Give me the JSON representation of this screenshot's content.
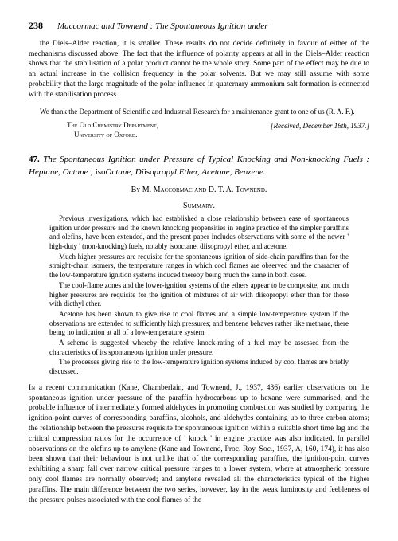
{
  "header": {
    "page_number": "238",
    "running_title": "Maccormac and Townend : The Spontaneous Ignition under"
  },
  "prev_section": {
    "para1": "the Diels–Alder reaction, it is smaller. These results do not decide definitely in favour of either of the mechanisms discussed above. The fact that the influence of polarity appears at all in the Diels–Alder reaction shows that the stabilisation of a polar product cannot be the whole story. Some part of the effect may be due to an actual increase in the collision frequency in the polar solvents. But we may still assume with some probability that the large magnitude of the polar influence in quaternary ammonium salt formation is connected with the stabilisation process.",
    "ack": "We thank the Department of Scientific and Industrial Research for a maintenance grant to one of us (R. A. F.).",
    "affil_line1": "The Old Chemistry Department,",
    "affil_line2": "University of Oxford.",
    "received": "[Received, December 16th, 1937.]"
  },
  "article": {
    "number": "47.",
    "title_html": "The Spontaneous Ignition under Pressure of Typical Knocking and Non-knocking Fuels : Heptane, Octane ; isoOctane, Diisopropyl Ether, Acetone, Benzene.",
    "authors": "By M. Maccormac and D. T. A. Townend.",
    "summary_head": "Summary.",
    "summary": {
      "p1": "Previous investigations, which had established a close relationship between ease of spontaneous ignition under pressure and the known knocking propensities in engine practice of the simpler paraffins and olefins, have been extended, and the present paper includes observations with some of the newer ' high-duty ' (non-knocking) fuels, notably isooctane, diisopropyl ether, and acetone.",
      "p2": "Much higher pressures are requisite for the spontaneous ignition of side-chain paraffins than for the straight-chain isomers, the temperature ranges in which cool flames are observed and the character of the low-temperature ignition systems induced thereby being much the same in both cases.",
      "p3": "The cool-flame zones and the lower-ignition systems of the ethers appear to be composite, and much higher pressures are requisite for the ignition of mixtures of air with diisopropyl ether than for those with diethyl ether.",
      "p4": "Acetone has been shown to give rise to cool flames and a simple low-temperature system if the observations are extended to sufficiently high pressures; and benzene behaves rather like methane, there being no indication at all of a low-temperature system.",
      "p5": "A scheme is suggested whereby the relative knock-rating of a fuel may be assessed from the characteristics of its spontaneous ignition under pressure.",
      "p6": "The processes giving rise to the low-temperature ignition systems induced by cool flames are briefly discussed."
    },
    "body_p1": "In a recent communication (Kane, Chamberlain, and Townend, J., 1937, 436) earlier observations on the spontaneous ignition under pressure of the paraffin hydrocarbons up to hexane were summarised, and the probable influence of intermediately formed aldehydes in promoting combustion was studied by comparing the ignition-point curves of corresponding paraffins, alcohols, and aldehydes containing up to three carbon atoms; the relationship between the pressures requisite for spontaneous ignition within a suitable short time lag and the critical compression ratios for the occurrence of ' knock ' in engine practice was also indicated. In parallel observations on the olefins up to amylene (Kane and Townend, Proc. Roy. Soc., 1937, A, 160, 174), it has also been shown that their behaviour is not unlike that of the corresponding paraffins, the ignition-point curves exhibiting a sharp fall over narrow critical pressure ranges to a lower system, where at atmospheric pressure only cool flames are normally observed; and amylene revealed all the characteristics typical of the higher paraffins. The main difference between the two series, however, lay in the weak luminosity and feebleness of the pressure pulses associated with the cool flames of the"
  }
}
